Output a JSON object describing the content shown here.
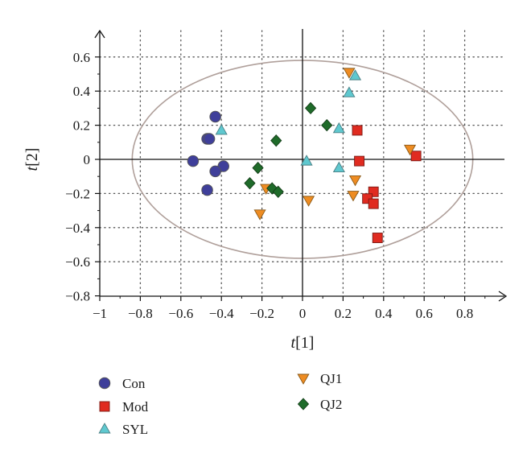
{
  "chart_data": {
    "type": "scatter",
    "title": "",
    "xlabel": "t[1]",
    "ylabel": "t[2]",
    "xlim": [
      -1,
      1
    ],
    "ylim": [
      -0.8,
      0.7
    ],
    "x_ticks": [
      -1,
      -0.8,
      -0.6,
      -0.4,
      -0.2,
      0,
      0.2,
      0.4,
      0.6,
      0.8
    ],
    "x_tick_labels": [
      "−1",
      "−0.8",
      "−0.6",
      "−0.4",
      "−0.2",
      "0",
      "0.2",
      "0.4",
      "0.6",
      "0.8"
    ],
    "y_ticks": [
      0.6,
      0.4,
      0.2,
      0,
      -0.2,
      -0.4,
      -0.6,
      -0.8
    ],
    "y_tick_labels": [
      "0.6",
      "0.4",
      "0.2",
      "0",
      "−0.2",
      "−0.4",
      "−0.6",
      "−0.8"
    ],
    "grid": "dotted",
    "legend_position": "bottom-left",
    "ellipse": {
      "center": [
        0,
        0
      ],
      "radii": [
        0.84,
        0.58
      ],
      "color": "#b0a09b"
    },
    "series": [
      {
        "name": "Con",
        "marker": "circle",
        "color": "#3f3f9a",
        "points": [
          [
            -0.43,
            0.25
          ],
          [
            -0.47,
            0.12
          ],
          [
            -0.46,
            0.12
          ],
          [
            -0.54,
            -0.01
          ],
          [
            -0.39,
            -0.04
          ],
          [
            -0.43,
            -0.07
          ],
          [
            -0.47,
            -0.18
          ]
        ]
      },
      {
        "name": "Mod",
        "marker": "square",
        "color": "#e02b20",
        "points": [
          [
            0.27,
            0.17
          ],
          [
            0.28,
            -0.01
          ],
          [
            0.56,
            0.02
          ],
          [
            0.35,
            -0.19
          ],
          [
            0.32,
            -0.23
          ],
          [
            0.35,
            -0.26
          ],
          [
            0.37,
            -0.46
          ]
        ]
      },
      {
        "name": "SYL",
        "marker": "triangle-up",
        "color": "#5fc8cf",
        "points": [
          [
            0.26,
            0.49
          ],
          [
            0.23,
            0.39
          ],
          [
            -0.4,
            0.17
          ],
          [
            0.18,
            0.18
          ],
          [
            0.02,
            -0.01
          ],
          [
            0.18,
            -0.05
          ]
        ]
      },
      {
        "name": "QJ1",
        "marker": "triangle-down",
        "color": "#ee8c22",
        "points": [
          [
            0.23,
            0.51
          ],
          [
            0.53,
            0.06
          ],
          [
            0.26,
            -0.12
          ],
          [
            -0.18,
            -0.17
          ],
          [
            0.25,
            -0.21
          ],
          [
            0.03,
            -0.24
          ],
          [
            -0.21,
            -0.32
          ]
        ]
      },
      {
        "name": "QJ2",
        "marker": "diamond",
        "color": "#1f6b2a",
        "points": [
          [
            0.04,
            0.3
          ],
          [
            0.12,
            0.2
          ],
          [
            -0.13,
            0.11
          ],
          [
            -0.22,
            -0.05
          ],
          [
            -0.26,
            -0.14
          ],
          [
            -0.15,
            -0.17
          ],
          [
            -0.12,
            -0.19
          ]
        ]
      }
    ]
  }
}
